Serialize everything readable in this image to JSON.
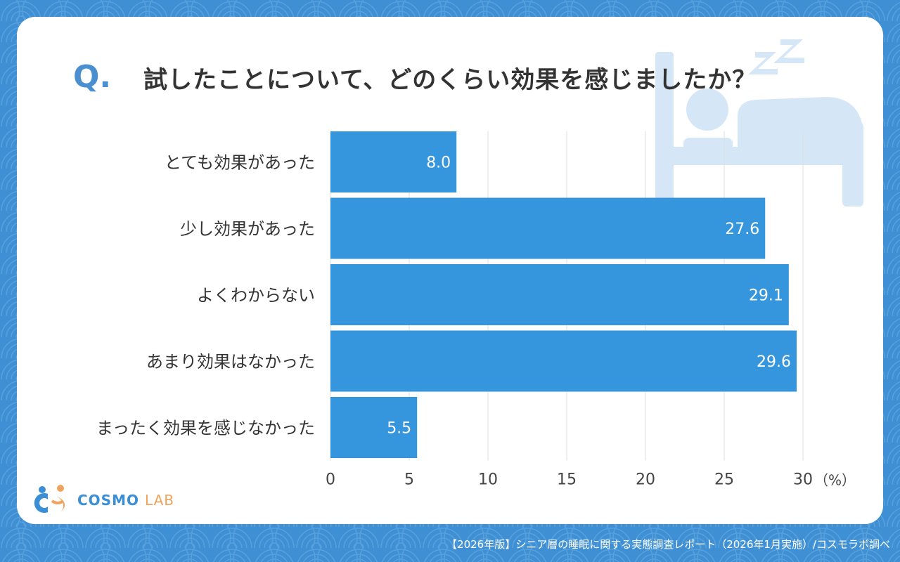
{
  "header": {
    "q_mark": "Q.",
    "title": "試したことについて、どのくらい効果を感じましたか？"
  },
  "chart_data": {
    "type": "bar",
    "orientation": "horizontal",
    "categories": [
      "とても効果があった",
      "少し効果があった",
      "よくわからない",
      "あまり効果はなかった",
      "まったく効果を感じなかった"
    ],
    "values": [
      8.0,
      27.6,
      29.1,
      29.6,
      5.5
    ],
    "value_labels": [
      "8.0",
      "27.6",
      "29.1",
      "29.6",
      "5.5"
    ],
    "xlim": [
      0,
      30
    ],
    "x_ticks": [
      0,
      5,
      10,
      15,
      20,
      25,
      30
    ],
    "x_unit": "（%）",
    "grid": true,
    "bar_color": "#3596dd"
  },
  "logo": {
    "name": "COSMO",
    "suffix": "LAB"
  },
  "footer": {
    "source": "【2026年版】シニア層の睡眠に関する実態調査レポート（2026年1月実施）/コスモラボ調べ"
  },
  "colors": {
    "background": "#3f8fd4",
    "card": "#ffffff",
    "accent": "#4a8fd0",
    "illustration": "#d5e7f7",
    "logo_orange": "#f0a35c"
  }
}
